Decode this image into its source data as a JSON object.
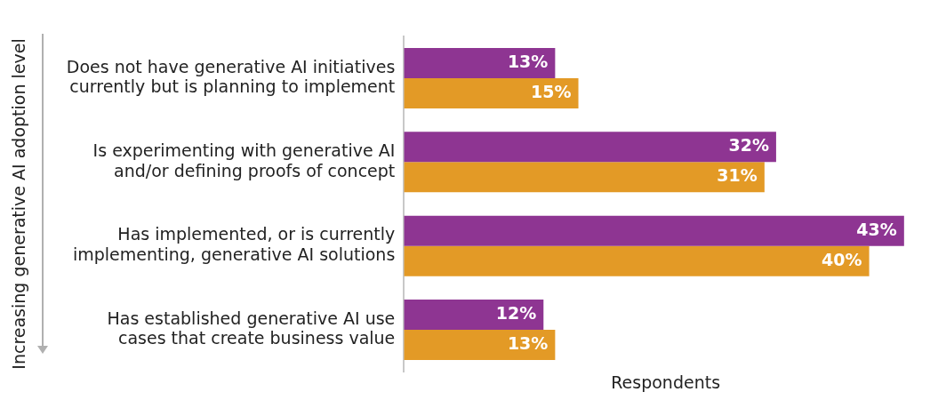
{
  "chart_data": {
    "type": "bar",
    "orientation": "horizontal",
    "ylabel": "Increasing generative AI adoption level",
    "xlabel": "Respondents",
    "categories": [
      "Does not have generative AI initiatives currently but is planning to implement",
      "Is experimenting with generative AI and/or defining proofs of concept",
      "Has implemented, or is currently implementing, generative AI solutions",
      "Has established generative AI use cases that create business value"
    ],
    "series": [
      {
        "color": "#8e3592",
        "values": [
          13,
          32,
          43,
          12
        ],
        "value_labels": [
          "13%",
          "32%",
          "43%",
          "12%"
        ]
      },
      {
        "color": "#e39a26",
        "values": [
          15,
          31,
          40,
          13
        ],
        "value_labels": [
          "15%",
          "31%",
          "40%",
          "13%"
        ]
      }
    ],
    "grid": false,
    "legend": false,
    "tick_labels": "y"
  }
}
